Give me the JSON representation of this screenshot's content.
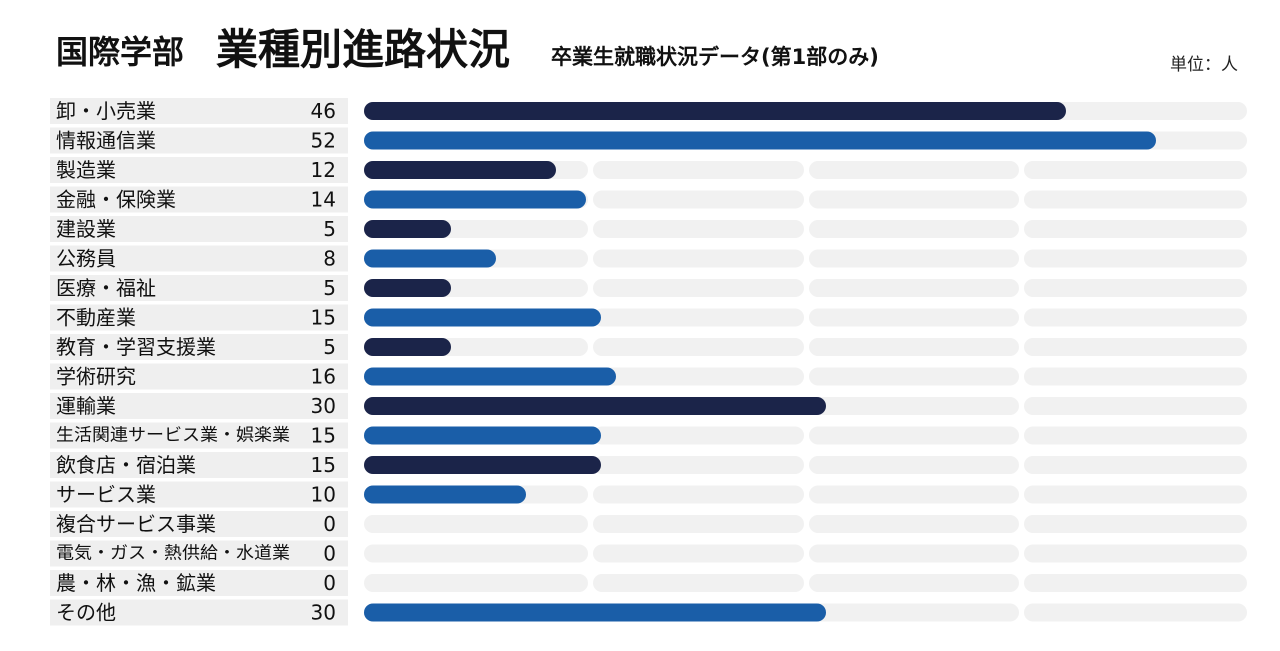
{
  "header": {
    "department": "国際学部",
    "title": "業種別進路状況",
    "subtitle": "卒業生就職状況データ(第1部のみ)",
    "unit": "単位：人"
  },
  "chart_data": {
    "type": "bar",
    "orientation": "horizontal",
    "title": "業種別進路状況",
    "subtitle": "卒業生就職状況データ(第1部のみ)",
    "unit": "単位：人",
    "xlim": [
      0,
      60
    ],
    "grid": true,
    "categories": [
      "卸・小売業",
      "情報通信業",
      "製造業",
      "金融・保険業",
      "建設業",
      "公務員",
      "医療・福祉",
      "不動産業",
      "教育・学習支援業",
      "学術研究",
      "運輸業",
      "生活関連サービス業・娯楽業",
      "飲食店・宿泊業",
      "サービス業",
      "複合サービス事業",
      "電気・ガス・熱供給・水道業",
      "農・林・漁・鉱業",
      "その他"
    ],
    "values": [
      46,
      52,
      12,
      14,
      5,
      8,
      5,
      15,
      5,
      16,
      30,
      15,
      15,
      10,
      0,
      0,
      0,
      30
    ],
    "colors": {
      "dark": "#1b2449",
      "blue": "#1a5ea8",
      "track": "#f1f1f1",
      "label_band": "#efefef"
    }
  }
}
